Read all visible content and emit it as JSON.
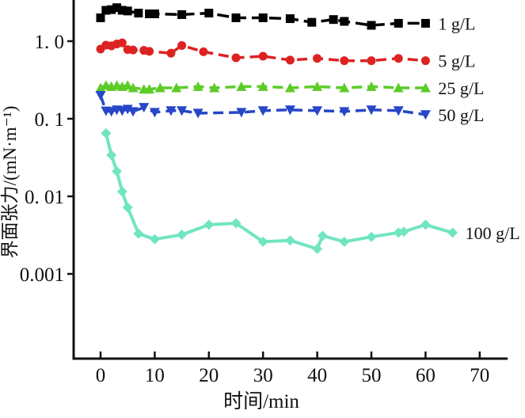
{
  "figure": {
    "background": "#ffffff",
    "axis_color": "#111111"
  },
  "chart_data": {
    "type": "line",
    "title": "",
    "xlabel": "时间/min",
    "ylabel": "界面张力/(mN·m⁻¹)",
    "y_scale": "log",
    "grid": false,
    "legend_position": "right-of-line-ends",
    "xlim": [
      -5,
      75
    ],
    "ylim": [
      0.0001,
      3.2
    ],
    "x_ticks": [
      {
        "value": 0,
        "label": "0"
      },
      {
        "value": 10,
        "label": "10"
      },
      {
        "value": 20,
        "label": "20"
      },
      {
        "value": 30,
        "label": "30"
      },
      {
        "value": 40,
        "label": "40"
      },
      {
        "value": 50,
        "label": "50"
      },
      {
        "value": 60,
        "label": "60"
      },
      {
        "value": 70,
        "label": "70"
      }
    ],
    "y_ticks": [
      {
        "value": 1.0,
        "label": "1. 0"
      },
      {
        "value": 0.1,
        "label": "0. 1"
      },
      {
        "value": 0.01,
        "label": "0. 01"
      },
      {
        "value": 0.001,
        "label": "0.001"
      }
    ],
    "series": [
      {
        "name": "1 g/L",
        "color": "#000000",
        "marker": "square",
        "dash": "15 7",
        "points": [
          [
            0,
            2.0
          ],
          [
            1,
            2.5
          ],
          [
            2,
            2.55
          ],
          [
            3,
            2.7
          ],
          [
            4,
            2.5
          ],
          [
            5,
            2.45
          ],
          [
            7,
            2.3
          ],
          [
            9,
            2.25
          ],
          [
            10,
            2.25
          ],
          [
            15,
            2.2
          ],
          [
            20,
            2.3
          ],
          [
            25,
            2.0
          ],
          [
            30,
            2.0
          ],
          [
            35,
            1.95
          ],
          [
            39,
            1.75
          ],
          [
            43,
            1.9
          ],
          [
            45,
            1.8
          ],
          [
            50,
            1.6
          ],
          [
            55,
            1.7
          ],
          [
            60,
            1.7
          ]
        ]
      },
      {
        "name": "5 g/L",
        "color": "#dd2222",
        "marker": "circle",
        "dash": "13 7",
        "points": [
          [
            0,
            0.79
          ],
          [
            1,
            0.89
          ],
          [
            2,
            0.87
          ],
          [
            3,
            0.92
          ],
          [
            4,
            0.95
          ],
          [
            5,
            0.78
          ],
          [
            6,
            0.77
          ],
          [
            8,
            0.76
          ],
          [
            9,
            0.74
          ],
          [
            13,
            0.7
          ],
          [
            15,
            0.88
          ],
          [
            19,
            0.73
          ],
          [
            25,
            0.61
          ],
          [
            30,
            0.64
          ],
          [
            35,
            0.57
          ],
          [
            40,
            0.6
          ],
          [
            45,
            0.56
          ],
          [
            50,
            0.56
          ],
          [
            55,
            0.6
          ],
          [
            60,
            0.56
          ]
        ]
      },
      {
        "name": "25 g/L",
        "color": "#5ccc28",
        "marker": "triangle-up",
        "dash": "13 7",
        "points": [
          [
            0,
            0.25
          ],
          [
            1,
            0.27
          ],
          [
            2,
            0.26
          ],
          [
            3,
            0.27
          ],
          [
            4,
            0.26
          ],
          [
            5,
            0.27
          ],
          [
            6,
            0.25
          ],
          [
            8,
            0.24
          ],
          [
            9,
            0.24
          ],
          [
            11,
            0.25
          ],
          [
            14,
            0.25
          ],
          [
            18,
            0.26
          ],
          [
            21,
            0.25
          ],
          [
            26,
            0.26
          ],
          [
            30,
            0.26
          ],
          [
            35,
            0.25
          ],
          [
            40,
            0.26
          ],
          [
            45,
            0.25
          ],
          [
            50,
            0.26
          ],
          [
            55,
            0.25
          ],
          [
            60,
            0.25
          ]
        ]
      },
      {
        "name": "50 g/L",
        "color": "#2746c8",
        "marker": "triangle-down",
        "dash": "13 7",
        "points": [
          [
            0,
            0.2
          ],
          [
            1,
            0.126
          ],
          [
            2,
            0.124
          ],
          [
            3,
            0.13
          ],
          [
            4,
            0.127
          ],
          [
            5,
            0.133
          ],
          [
            6,
            0.124
          ],
          [
            8,
            0.14
          ],
          [
            10,
            0.121
          ],
          [
            13,
            0.127
          ],
          [
            15,
            0.127
          ],
          [
            18,
            0.118
          ],
          [
            26,
            0.121
          ],
          [
            30,
            0.127
          ],
          [
            35,
            0.13
          ],
          [
            40,
            0.127
          ],
          [
            45,
            0.124
          ],
          [
            50,
            0.13
          ],
          [
            55,
            0.127
          ],
          [
            60,
            0.113
          ]
        ]
      },
      {
        "name": "100 g/L",
        "color": "#70e5c2",
        "marker": "diamond",
        "dash": "",
        "points": [
          [
            1,
            0.065
          ],
          [
            2,
            0.034
          ],
          [
            3,
            0.021
          ],
          [
            4,
            0.0115
          ],
          [
            5,
            0.0072
          ],
          [
            7,
            0.0033
          ],
          [
            10,
            0.0028
          ],
          [
            15,
            0.0032
          ],
          [
            20,
            0.0043
          ],
          [
            25,
            0.0045
          ],
          [
            30,
            0.0026
          ],
          [
            35,
            0.0027
          ],
          [
            40,
            0.0021
          ],
          [
            41,
            0.0031
          ],
          [
            45,
            0.0026
          ],
          [
            50,
            0.003
          ],
          [
            55,
            0.0034
          ],
          [
            56,
            0.0035
          ],
          [
            60,
            0.0043
          ],
          [
            65,
            0.0034
          ]
        ]
      }
    ]
  }
}
